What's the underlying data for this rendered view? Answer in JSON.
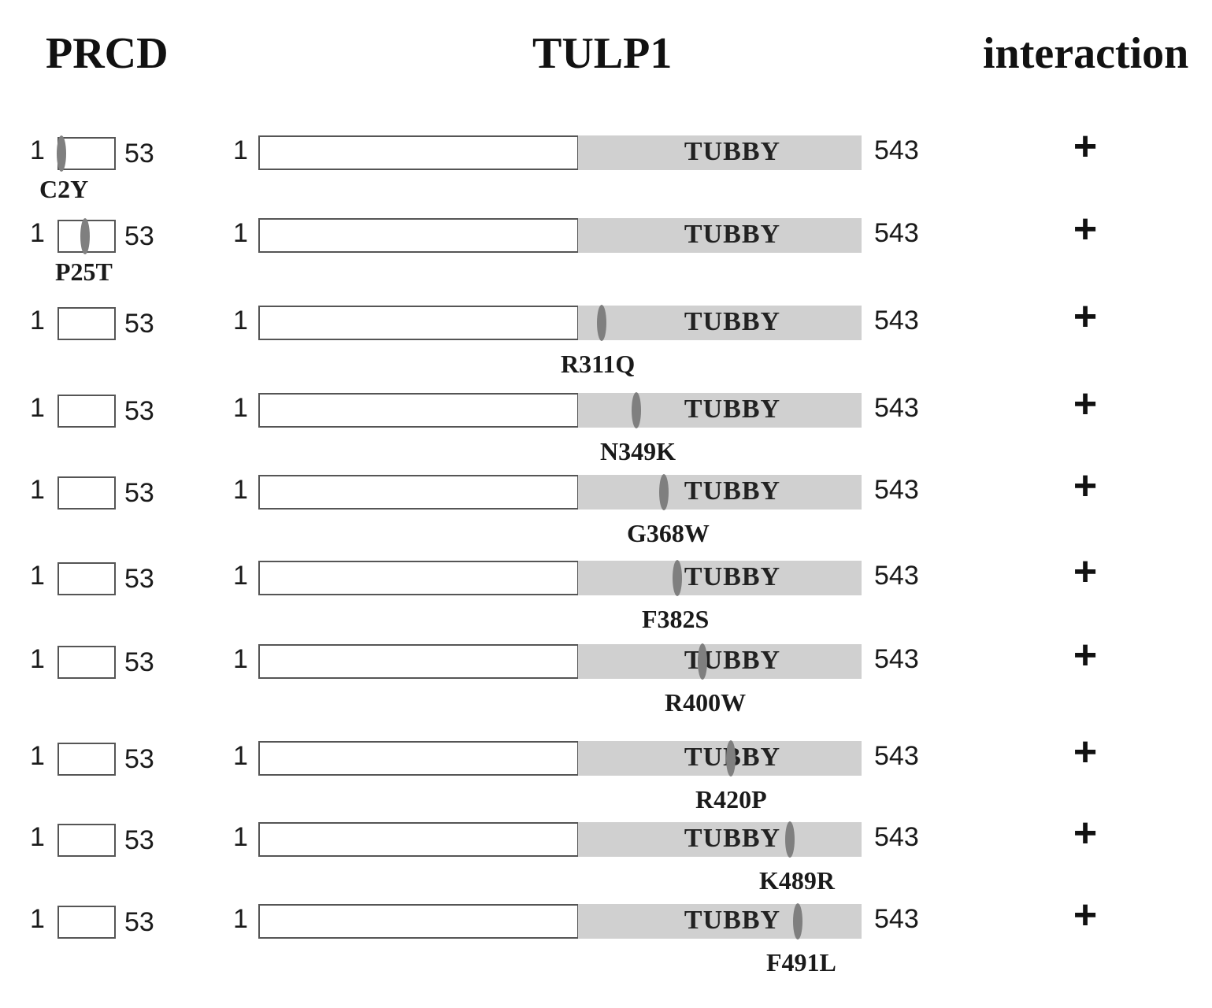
{
  "headers": {
    "prcd": "PRCD",
    "tulp1": "TULP1",
    "interaction": "interaction"
  },
  "domain_label": "TUBBY",
  "prcd_length": {
    "start": "1",
    "end": "53"
  },
  "tulp1_length": {
    "start": "1",
    "end": "543"
  },
  "rows": [
    {
      "mutation": "C2Y",
      "protein": "PRCD",
      "interaction": "+"
    },
    {
      "mutation": "P25T",
      "protein": "PRCD",
      "interaction": "+"
    },
    {
      "mutation": "R311Q",
      "protein": "TULP1",
      "interaction": "+"
    },
    {
      "mutation": "N349K",
      "protein": "TULP1",
      "interaction": "+"
    },
    {
      "mutation": "G368W",
      "protein": "TULP1",
      "interaction": "+"
    },
    {
      "mutation": "F382S",
      "protein": "TULP1",
      "interaction": "+"
    },
    {
      "mutation": "R400W",
      "protein": "TULP1",
      "interaction": "+"
    },
    {
      "mutation": "R420P",
      "protein": "TULP1",
      "interaction": "+"
    },
    {
      "mutation": "K489R",
      "protein": "TULP1",
      "interaction": "+"
    },
    {
      "mutation": "F491L",
      "protein": "TULP1",
      "interaction": "+"
    }
  ],
  "colors": {
    "tubby_fill": "#d0d0d0",
    "mutation_mark": "#7f7f7f",
    "outline": "#555555"
  }
}
